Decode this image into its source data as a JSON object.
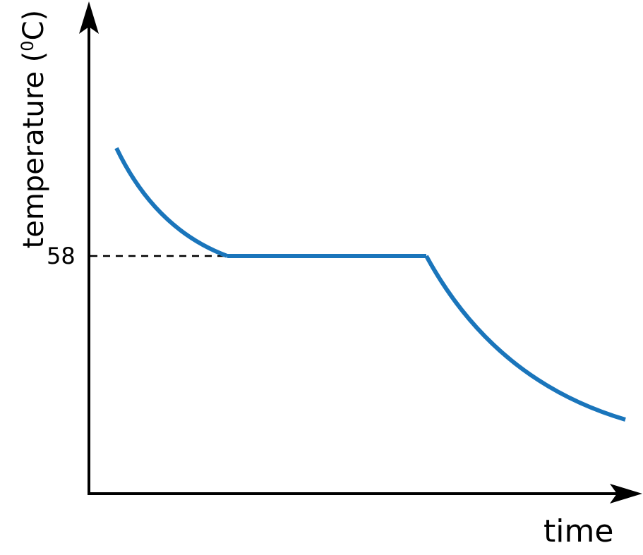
{
  "chart_data": {
    "type": "line",
    "title": "",
    "xlabel": "time",
    "ylabel": {
      "prefix": "temperature (",
      "superscript": "0",
      "suffix": "C)"
    },
    "y_ticks": [
      "58"
    ],
    "plateau_temperature": 58,
    "segments": [
      "cooling",
      "plateau",
      "cooling"
    ],
    "grid": false,
    "reference_line": {
      "y": 58,
      "style": "dashed"
    },
    "colors": {
      "curve": "#1a75bb",
      "axes": "#000000"
    }
  }
}
